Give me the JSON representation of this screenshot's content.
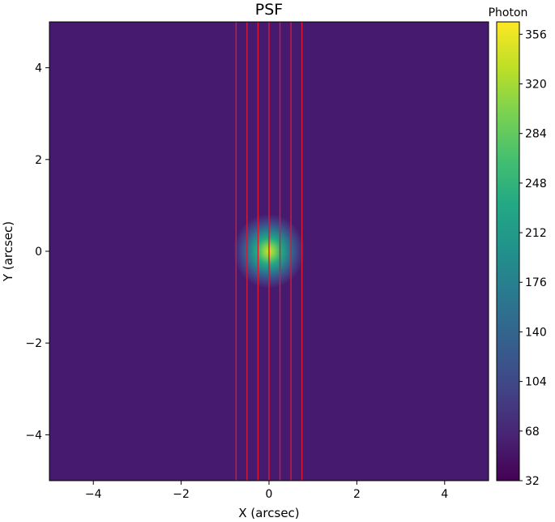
{
  "chart_data": {
    "type": "heatmap",
    "title": "PSF",
    "xlabel": "X (arcsec)",
    "ylabel": "Y (arcsec)",
    "xlim": [
      -5,
      5
    ],
    "ylim": [
      -5,
      5
    ],
    "x_ticks": [
      -4,
      -2,
      0,
      2,
      4
    ],
    "y_ticks": [
      -4,
      -2,
      0,
      2,
      4
    ],
    "x_tick_labels": [
      "−4",
      "−2",
      "0",
      "2",
      "4"
    ],
    "y_tick_labels": [
      "−4",
      "−2",
      "0",
      "2",
      "4"
    ],
    "grid": false,
    "colormap": "viridis",
    "background_value": 32,
    "peak": {
      "x": 0,
      "y": 0,
      "value": 360,
      "sigma_arcsec": 0.4
    },
    "colorbar": {
      "label": "Photon",
      "min": 32,
      "max": 365,
      "ticks": [
        32,
        68,
        104,
        140,
        176,
        212,
        248,
        284,
        320,
        356
      ],
      "tick_labels": [
        "32",
        "68",
        "104",
        "140",
        "176",
        "212",
        "248",
        "284",
        "320",
        "356"
      ]
    },
    "slit_lines": {
      "color": "#e0182c",
      "x": [
        -0.75,
        -0.5,
        -0.25,
        0,
        0.25,
        0.5,
        0.75
      ]
    }
  }
}
